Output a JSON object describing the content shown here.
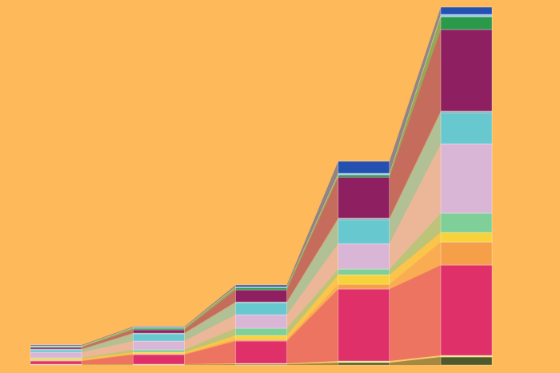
{
  "chart_data": {
    "type": "stacked-flow-bar",
    "categories": [
      null,
      null,
      null,
      null,
      null
    ],
    "ylim": [
      0,
      450
    ],
    "background": "#fdb95a",
    "series": [
      {
        "color": "#4e5a2a",
        "values": [
          0.5,
          0.5,
          1,
          3,
          10
        ]
      },
      {
        "color": "#f3e27a",
        "values": [
          0.5,
          0.5,
          1,
          2,
          2
        ]
      },
      {
        "color": "#e0306a",
        "values": [
          4,
          12,
          28,
          90,
          113
        ]
      },
      {
        "color": "#f5a048",
        "values": [
          1,
          1,
          2,
          6,
          29
        ]
      },
      {
        "color": "#f7d23a",
        "values": [
          2,
          2,
          5,
          12,
          12
        ]
      },
      {
        "color": "#7ecf98",
        "values": [
          1,
          3,
          9,
          7,
          24
        ]
      },
      {
        "color": "#dab6d6",
        "values": [
          7,
          11,
          17,
          32,
          87
        ]
      },
      {
        "color": "#68c8d0",
        "values": [
          3,
          9,
          15,
          30,
          39
        ]
      },
      {
        "color": "#9a9aa0",
        "values": [
          1,
          1,
          1,
          2,
          2
        ]
      },
      {
        "color": "#8e1f60",
        "values": [
          2,
          4,
          15,
          51,
          102
        ]
      },
      {
        "color": "#2a9a4a",
        "values": [
          1,
          2,
          3,
          3,
          16
        ]
      },
      {
        "color": "#9ec8e8",
        "values": [
          1,
          1,
          1,
          2,
          3
        ]
      },
      {
        "color": "#2450b0",
        "values": [
          1,
          1,
          2,
          15,
          9
        ]
      }
    ]
  }
}
